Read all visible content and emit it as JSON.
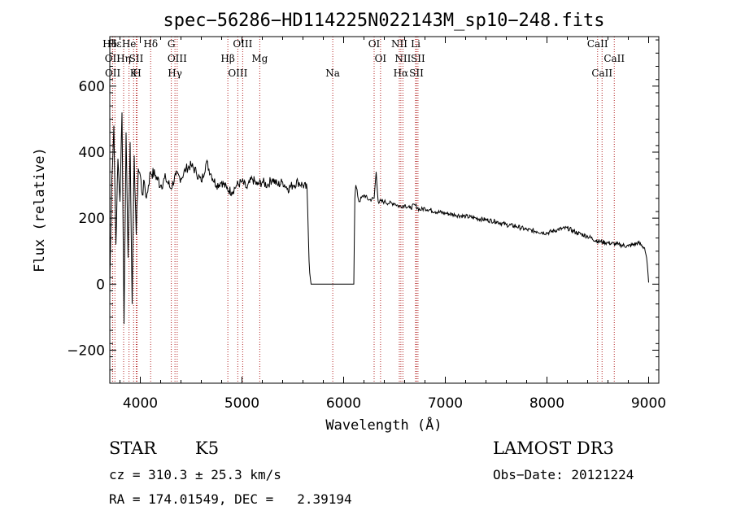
{
  "chart_data": {
    "type": "line",
    "title": "spec−56286−HD114225N022143M_sp10−248.fits",
    "xlabel": "Wavelength (Å)",
    "ylabel": "Flux (relative)",
    "xlim": [
      3700,
      9100
    ],
    "ylim": [
      -300,
      750
    ],
    "x_ticks": [
      4000,
      5000,
      6000,
      7000,
      8000,
      9000
    ],
    "y_ticks": [
      -200,
      0,
      200,
      400,
      600
    ],
    "y_tick_labels": [
      "−200",
      "0",
      "200",
      "400",
      "600"
    ],
    "series": [
      {
        "name": "flux",
        "x": [
          3700,
          3720,
          3740,
          3760,
          3780,
          3800,
          3820,
          3840,
          3860,
          3880,
          3900,
          3920,
          3940,
          3960,
          3980,
          4000,
          4020,
          4040,
          4060,
          4080,
          4100,
          4150,
          4200,
          4250,
          4300,
          4350,
          4400,
          4450,
          4500,
          4550,
          4600,
          4650,
          4700,
          4750,
          4800,
          4850,
          4900,
          4950,
          5000,
          5050,
          5100,
          5150,
          5200,
          5250,
          5300,
          5350,
          5400,
          5450,
          5500,
          5550,
          5600,
          5640,
          5660,
          5680,
          5700,
          5800,
          5900,
          6000,
          6100,
          6110,
          6120,
          6150,
          6200,
          6250,
          6300,
          6320,
          6340,
          6400,
          6450,
          6500,
          6550,
          6600,
          6650,
          6700,
          6750,
          6800,
          6900,
          7000,
          7100,
          7200,
          7300,
          7400,
          7500,
          7600,
          7700,
          7800,
          7900,
          8000,
          8100,
          8200,
          8300,
          8400,
          8500,
          8600,
          8700,
          8800,
          8900,
          8960,
          8980,
          9000
        ],
        "y": [
          0,
          320,
          480,
          120,
          380,
          250,
          520,
          -120,
          460,
          80,
          430,
          -60,
          390,
          150,
          350,
          330,
          270,
          310,
          260,
          300,
          340,
          330,
          300,
          320,
          290,
          330,
          320,
          350,
          360,
          340,
          310,
          370,
          330,
          300,
          310,
          290,
          280,
          300,
          310,
          290,
          320,
          300,
          310,
          300,
          320,
          300,
          310,
          290,
          300,
          310,
          300,
          290,
          70,
          0,
          0,
          0,
          0,
          0,
          0,
          260,
          300,
          250,
          270,
          255,
          260,
          340,
          250,
          250,
          245,
          245,
          235,
          240,
          230,
          240,
          225,
          230,
          220,
          215,
          210,
          205,
          200,
          195,
          190,
          180,
          175,
          165,
          160,
          155,
          165,
          170,
          155,
          145,
          130,
          125,
          120,
          115,
          125,
          110,
          80,
          5
        ]
      }
    ],
    "line_markers": [
      {
        "label": "Hδ",
        "x": 3700
      },
      {
        "label": "OII",
        "x": 3727
      },
      {
        "label": "OII",
        "x": 3729
      },
      {
        "label": "Hε",
        "x": 3750
      },
      {
        "label": "Hη",
        "x": 3836
      },
      {
        "label": "K",
        "x": 3934
      },
      {
        "label": "He",
        "x": 3889
      },
      {
        "label": "SII",
        "x": 3960
      },
      {
        "label": "H",
        "x": 3969
      },
      {
        "label": "Hδ",
        "x": 4102
      },
      {
        "label": "OIII",
        "x": 4363
      },
      {
        "label": "Hγ",
        "x": 4341
      },
      {
        "label": "G",
        "x": 4305
      },
      {
        "label": "Hβ",
        "x": 4861
      },
      {
        "label": "OIII",
        "x": 4959
      },
      {
        "label": "OIII",
        "x": 5007
      },
      {
        "label": "Mg",
        "x": 5175
      },
      {
        "label": "Na",
        "x": 5893
      },
      {
        "label": "OI",
        "x": 6300
      },
      {
        "label": "OI",
        "x": 6363
      },
      {
        "label": "Hα",
        "x": 6563
      },
      {
        "label": "NII",
        "x": 6548
      },
      {
        "label": "NII",
        "x": 6583
      },
      {
        "label": "SII",
        "x": 6716
      },
      {
        "label": "Li",
        "x": 6708
      },
      {
        "label": "SII",
        "x": 6731
      },
      {
        "label": "CaII",
        "x": 8542
      },
      {
        "label": "CaII",
        "x": 8498
      },
      {
        "label": "CaII",
        "x": 8662
      }
    ]
  },
  "info": {
    "object_class": "STAR",
    "subclass": "K5",
    "survey": "LAMOST DR3",
    "cz": "cz = 310.3 ± 25.3 km/s",
    "obs_date": "Obs−Date: 20121224",
    "coords": "RA = 174.01549, DEC =   2.39194"
  },
  "colors": {
    "spectrum": "#000000",
    "marker": "#b22222",
    "background": "#ffffff"
  }
}
